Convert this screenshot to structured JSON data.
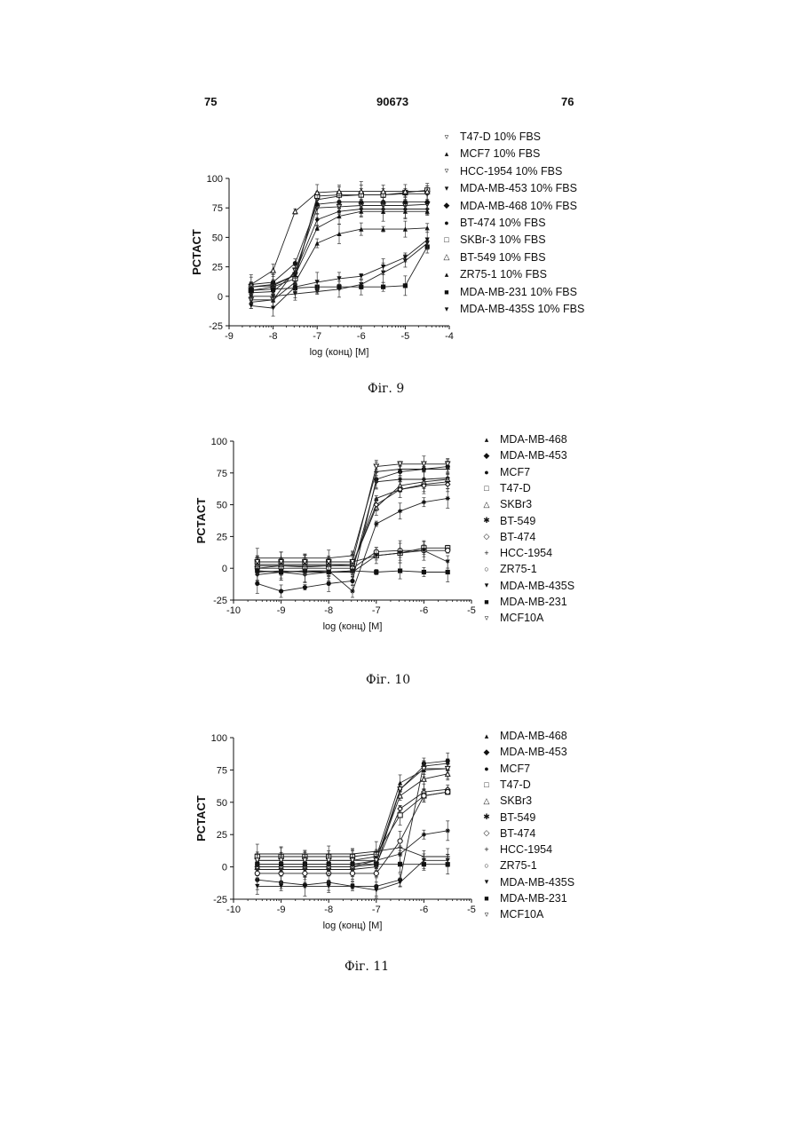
{
  "header": {
    "left_page": "75",
    "patent_number": "90673",
    "right_page": "76"
  },
  "figures": [
    {
      "caption": "Фіг. 9",
      "chart_data": {
        "type": "scatter",
        "xlabel": "log (конц) [M]",
        "ylabel": "PCTACT",
        "xlim": [
          -9,
          -4
        ],
        "ylim": [
          -25,
          100
        ],
        "xticks": [
          "-9",
          "-8",
          "-7",
          "-6",
          "-5",
          "-4"
        ],
        "yticks": [
          "-25",
          "0",
          "25",
          "50",
          "75",
          "100"
        ],
        "x": [
          -8.5,
          -8.0,
          -7.5,
          -7.0,
          -6.5,
          -6.0,
          -5.5,
          -5.0,
          -4.5
        ],
        "legend_position": "right",
        "series": [
          {
            "name": "T47-D 10% FBS",
            "marker": "▿",
            "values": [
              -3,
              -3,
              22,
              75,
              76,
              77,
              77,
              77,
              78
            ]
          },
          {
            "name": "MCF7 10% FBS",
            "marker": "▴",
            "values": [
              -5,
              -3,
              12,
              45,
              53,
              57,
              57,
              57,
              58
            ]
          },
          {
            "name": "HCC-1954 10% FBS",
            "marker": "▿",
            "values": [
              8,
              9,
              18,
              82,
              85,
              86,
              86,
              87,
              87
            ]
          },
          {
            "name": "MDA-MB-453 10% FBS",
            "marker": "▾",
            "values": [
              0,
              0,
              2,
              4,
              6,
              10,
              20,
              30,
              45
            ]
          },
          {
            "name": "MDA-MB-468 10% FBS",
            "marker": "◆",
            "values": [
              3,
              4,
              20,
              65,
              72,
              74,
              74,
              74,
              74
            ]
          },
          {
            "name": "BT-474 10% FBS",
            "marker": "●",
            "values": [
              10,
              12,
              28,
              78,
              80,
              80,
              80,
              80,
              80
            ]
          },
          {
            "name": "SKBr-3 10% FBS",
            "marker": "□",
            "values": [
              5,
              8,
              15,
              85,
              86,
              86,
              86,
              88,
              90
            ]
          },
          {
            "name": "BT-549 10% FBS",
            "marker": "△",
            "values": [
              10,
              22,
              72,
              88,
              89,
              89,
              89,
              89,
              89
            ]
          },
          {
            "name": "ZR75-1 10% FBS",
            "marker": "▴",
            "values": [
              8,
              10,
              18,
              58,
              68,
              72,
              72,
              72,
              72
            ]
          },
          {
            "name": "MDA-MB-231 10% FBS",
            "marker": "■",
            "values": [
              5,
              6,
              7,
              8,
              8,
              8,
              8,
              9,
              42
            ]
          },
          {
            "name": "MDA-MB-435S 10% FBS",
            "marker": "▾",
            "values": [
              -8,
              -10,
              8,
              12,
              15,
              17,
              25,
              33,
              48
            ]
          }
        ]
      }
    },
    {
      "caption": "Фіг. 10",
      "chart_data": {
        "type": "scatter",
        "xlabel": "log (конц) [M]",
        "ylabel": "PCTACT",
        "xlim": [
          -10,
          -5
        ],
        "ylim": [
          -25,
          100
        ],
        "xticks": [
          "-10",
          "-9",
          "-8",
          "-7",
          "-6",
          "-5"
        ],
        "yticks": [
          "-25",
          "0",
          "25",
          "50",
          "75",
          "100"
        ],
        "x": [
          -9.5,
          -9.0,
          -8.5,
          -8.0,
          -7.5,
          -7.0,
          -6.5,
          -6.0,
          -5.5
        ],
        "legend_position": "right",
        "series": [
          {
            "name": "MDA-MB-468",
            "marker": "▴",
            "values": [
              0,
              2,
              1,
              2,
              2,
              55,
              62,
              66,
              68
            ]
          },
          {
            "name": "MDA-MB-453",
            "marker": "◆",
            "values": [
              -5,
              -3,
              -5,
              -3,
              -2,
              68,
              70,
              70,
              71
            ]
          },
          {
            "name": "MCF7",
            "marker": "●",
            "values": [
              -12,
              -18,
              -15,
              -12,
              -10,
              70,
              76,
              78,
              80
            ]
          },
          {
            "name": "T47-D",
            "marker": "□",
            "values": [
              5,
              5,
              5,
              5,
              5,
              10,
              12,
              16,
              16
            ]
          },
          {
            "name": "SKBr3",
            "marker": "△",
            "values": [
              3,
              3,
              3,
              3,
              3,
              48,
              65,
              68,
              70
            ]
          },
          {
            "name": "BT-549",
            "marker": "✱",
            "values": [
              -2,
              -3,
              -2,
              -2,
              -18,
              35,
              45,
              52,
              55
            ]
          },
          {
            "name": "BT-474",
            "marker": "◇",
            "values": [
              2,
              2,
              2,
              2,
              3,
              50,
              62,
              65,
              66
            ]
          },
          {
            "name": "HCC-1954",
            "marker": "+",
            "values": [
              8,
              8,
              8,
              8,
              10,
              76,
              78,
              78,
              78
            ]
          },
          {
            "name": "ZR75-1",
            "marker": "○",
            "values": [
              0,
              0,
              0,
              0,
              0,
              13,
              14,
              14,
              14
            ]
          },
          {
            "name": "MDA-MB-435S",
            "marker": "▾",
            "values": [
              -3,
              -2,
              -3,
              -3,
              -3,
              10,
              12,
              14,
              5
            ]
          },
          {
            "name": "MDA-MB-231",
            "marker": "■",
            "values": [
              -2,
              -3,
              -2,
              -3,
              -2,
              -3,
              -2,
              -3,
              -3
            ]
          },
          {
            "name": "MCF10A",
            "marker": "▿",
            "values": [
              5,
              5,
              5,
              5,
              5,
              80,
              82,
              82,
              82
            ]
          }
        ]
      }
    },
    {
      "caption": "Фіг. 11",
      "chart_data": {
        "type": "scatter",
        "xlabel": "log (конц) [M]",
        "ylabel": "PCTACT",
        "xlim": [
          -10,
          -5
        ],
        "ylim": [
          -25,
          100
        ],
        "xticks": [
          "-10",
          "-9",
          "-8",
          "-7",
          "-6",
          "-5"
        ],
        "yticks": [
          "-25",
          "0",
          "25",
          "50",
          "75",
          "100"
        ],
        "x": [
          -9.5,
          -9.0,
          -8.5,
          -8.0,
          -7.5,
          -7.0,
          -6.5,
          -6.0,
          -5.5
        ],
        "legend_position": "right",
        "series": [
          {
            "name": "MDA-MB-468",
            "marker": "▴",
            "values": [
              5,
              5,
              5,
              5,
              5,
              8,
              65,
              75,
              76
            ]
          },
          {
            "name": "MDA-MB-453",
            "marker": "◆",
            "values": [
              -2,
              -2,
              -2,
              -2,
              -2,
              0,
              60,
              78,
              80
            ]
          },
          {
            "name": "MCF7",
            "marker": "●",
            "values": [
              -10,
              -12,
              -14,
              -12,
              -15,
              -15,
              -10,
              80,
              82
            ]
          },
          {
            "name": "T47-D",
            "marker": "□",
            "values": [
              8,
              8,
              8,
              8,
              8,
              10,
              40,
              55,
              58
            ]
          },
          {
            "name": "SKBr3",
            "marker": "△",
            "values": [
              0,
              0,
              0,
              0,
              0,
              5,
              55,
              68,
              72
            ]
          },
          {
            "name": "BT-549",
            "marker": "✱",
            "values": [
              2,
              2,
              2,
              2,
              2,
              5,
              10,
              25,
              28
            ]
          },
          {
            "name": "BT-474",
            "marker": "◇",
            "values": [
              0,
              0,
              0,
              0,
              0,
              2,
              45,
              58,
              60
            ]
          },
          {
            "name": "HCC-1954",
            "marker": "+",
            "values": [
              10,
              10,
              10,
              10,
              10,
              12,
              15,
              8,
              8
            ]
          },
          {
            "name": "ZR75-1",
            "marker": "○",
            "values": [
              -5,
              -5,
              -5,
              -5,
              -5,
              -5,
              20,
              55,
              58
            ]
          },
          {
            "name": "MDA-MB-435S",
            "marker": "▾",
            "values": [
              -15,
              -15,
              -15,
              -15,
              -15,
              -18,
              -12,
              5,
              5
            ]
          },
          {
            "name": "MDA-MB-231",
            "marker": "■",
            "values": [
              2,
              2,
              2,
              2,
              2,
              2,
              2,
              2,
              2
            ]
          },
          {
            "name": "MCF10A",
            "marker": "▿",
            "values": [
              5,
              5,
              5,
              5,
              5,
              5,
              60,
              76,
              76
            ]
          }
        ]
      }
    }
  ]
}
